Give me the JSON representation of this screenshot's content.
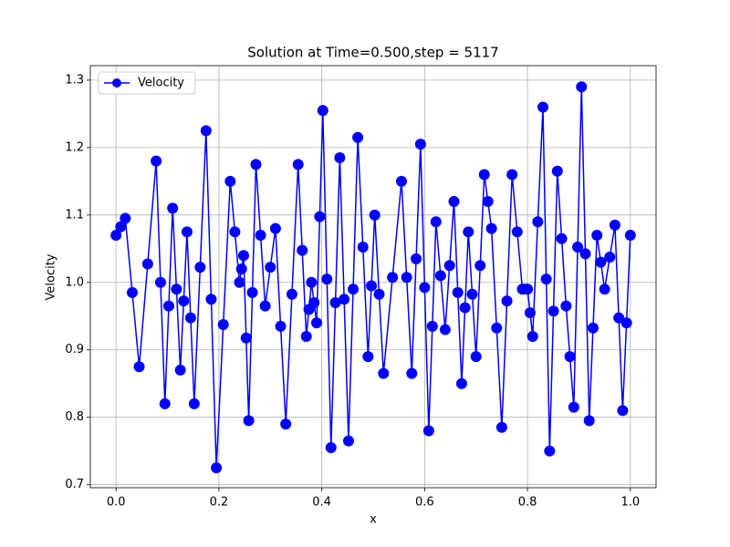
{
  "chart_data": {
    "type": "line",
    "title": "Solution at Time=0.500,step = 5117",
    "xlabel": "x",
    "ylabel": "Velocity",
    "x": [
      0,
      0.009,
      0.018,
      0.0315,
      0.045,
      0.0615,
      0.078,
      0.0865,
      0.095,
      0.1025,
      0.11,
      0.1175,
      0.125,
      0.1315,
      0.138,
      0.145,
      0.152,
      0.1635,
      0.175,
      0.185,
      0.195,
      0.2085,
      0.222,
      0.231,
      0.24,
      0.244,
      0.248,
      0.253,
      0.258,
      0.265,
      0.272,
      0.281,
      0.29,
      0.3,
      0.31,
      0.32,
      0.33,
      0.342,
      0.354,
      0.362,
      0.37,
      0.375,
      0.38,
      0.385,
      0.39,
      0.396,
      0.402,
      0.41,
      0.418,
      0.4265,
      0.435,
      0.4435,
      0.452,
      0.461,
      0.47,
      0.48,
      0.49,
      0.4965,
      0.503,
      0.5115,
      0.52,
      0.5375,
      0.555,
      0.565,
      0.575,
      0.5835,
      0.592,
      0.6,
      0.608,
      0.615,
      0.622,
      0.631,
      0.64,
      0.6485,
      0.657,
      0.6645,
      0.672,
      0.6785,
      0.685,
      0.6925,
      0.7,
      0.708,
      0.716,
      0.723,
      0.73,
      0.74,
      0.75,
      0.76,
      0.77,
      0.78,
      0.79,
      0.795,
      0.8,
      0.805,
      0.81,
      0.82,
      0.83,
      0.8365,
      0.843,
      0.8505,
      0.858,
      0.8665,
      0.875,
      0.8825,
      0.89,
      0.8975,
      0.905,
      0.9125,
      0.92,
      0.9275,
      0.935,
      0.9425,
      0.95,
      0.96,
      0.97,
      0.9775,
      0.985,
      0.9925,
      1
    ],
    "series": [
      {
        "name": "Velocity",
        "color": "#0000ff",
        "values": [
          1.07,
          1.0825,
          1.095,
          0.985,
          0.875,
          1.0275,
          1.18,
          1.0,
          0.82,
          0.965,
          1.11,
          0.99,
          0.87,
          0.9725,
          1.075,
          0.9475,
          0.82,
          1.0225,
          1.225,
          0.975,
          0.725,
          0.9375,
          1.15,
          1.075,
          1.0,
          1.02,
          1.04,
          0.9175,
          0.795,
          0.985,
          1.175,
          1.07,
          0.965,
          1.0225,
          1.08,
          0.935,
          0.79,
          0.9825,
          1.175,
          1.0475,
          0.92,
          0.96,
          1.0,
          0.97,
          0.94,
          1.0975,
          1.255,
          1.005,
          0.755,
          0.97,
          1.185,
          0.975,
          0.765,
          0.99,
          1.215,
          1.0525,
          0.89,
          0.995,
          1.1,
          0.9825,
          0.865,
          1.0075,
          1.15,
          1.0075,
          0.865,
          1.035,
          1.205,
          0.9925,
          0.78,
          0.935,
          1.09,
          1.01,
          0.93,
          1.025,
          1.12,
          0.985,
          0.85,
          0.9625,
          1.075,
          0.9825,
          0.89,
          1.025,
          1.16,
          1.12,
          1.08,
          0.9325,
          0.785,
          0.9725,
          1.16,
          1.075,
          0.99,
          0.99,
          0.99,
          0.955,
          0.92,
          1.09,
          1.26,
          1.005,
          0.75,
          0.9575,
          1.165,
          1.065,
          0.965,
          0.89,
          0.815,
          1.0525,
          1.29,
          1.0425,
          0.795,
          0.9325,
          1.07,
          1.03,
          0.99,
          1.0375,
          1.085,
          0.9475,
          0.81,
          0.94,
          1.07
        ]
      }
    ],
    "xlim": [
      -0.05,
      1.05
    ],
    "ylim": [
      0.6955,
      1.3215
    ],
    "xticks": [
      {
        "value": 0,
        "label": "0.0"
      },
      0.2,
      0.4,
      0.6,
      0.8,
      {
        "value": 1,
        "label": "1.0"
      }
    ],
    "yticks": [
      0.7,
      0.8,
      0.9,
      {
        "value": 1,
        "label": "1.0"
      },
      1.1,
      1.2,
      1.3
    ],
    "grid": true,
    "legend": "upper-left"
  }
}
